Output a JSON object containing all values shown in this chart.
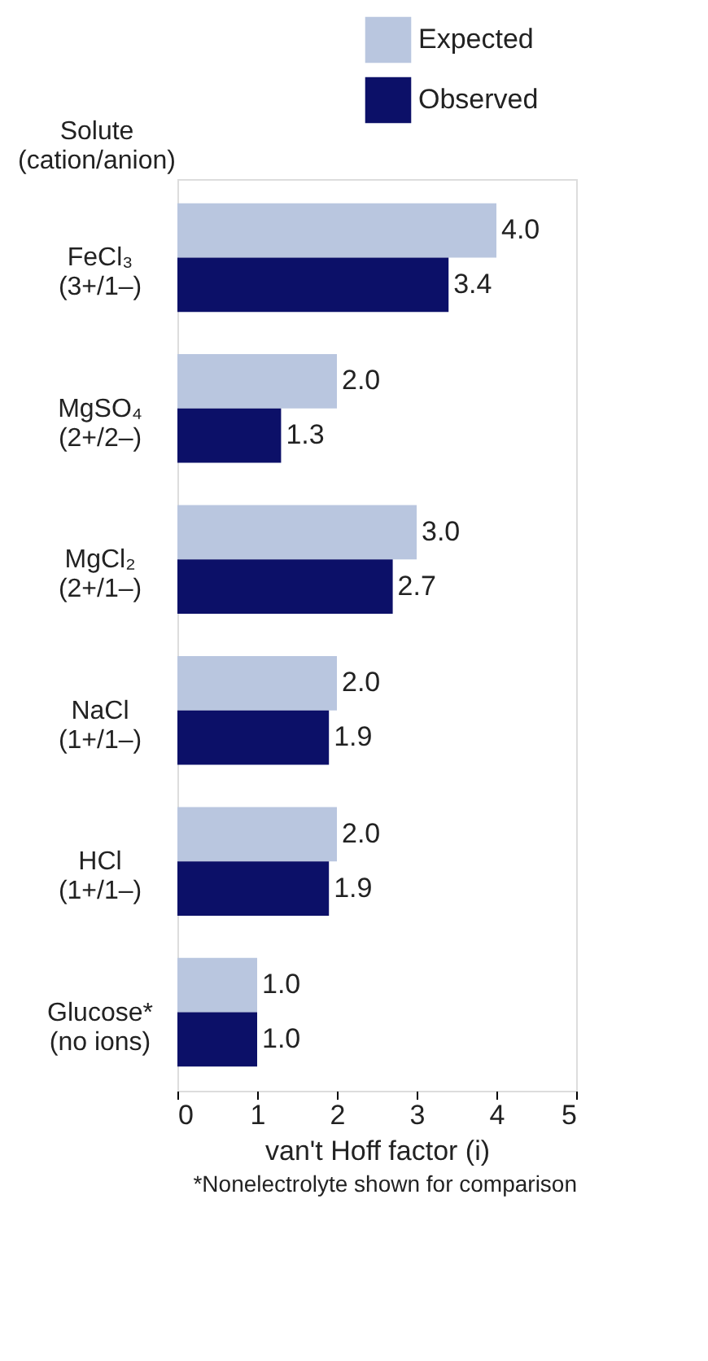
{
  "chart_data": {
    "type": "bar",
    "orientation": "horizontal",
    "ylabel": "Solute (cation/anion)",
    "xlabel": "van't Hoff factor (i)",
    "categories": [
      "FeCl₃ (3+/1–)",
      "MgSO₄ (2+/2–)",
      "MgCl₂ (2+/1–)",
      "NaCl (1+/1–)",
      "HCl (1+/1–)",
      "Glucose* (no ions)"
    ],
    "series": [
      {
        "name": "Expected",
        "color": "#b9c6df",
        "values": [
          4.0,
          2.0,
          3.0,
          2.0,
          2.0,
          1.0
        ],
        "value_labels": [
          "4.0",
          "2.0",
          "3.0",
          "2.0",
          "2.0",
          "1.0"
        ]
      },
      {
        "name": "Observed",
        "color": "#0c1068",
        "values": [
          3.4,
          1.3,
          2.7,
          1.9,
          1.9,
          1.0
        ],
        "value_labels": [
          "3.4",
          "1.3",
          "2.7",
          "1.9",
          "1.9",
          "1.0"
        ]
      }
    ],
    "xlim": [
      0,
      5
    ],
    "xticks": [
      0,
      1,
      2,
      3,
      4,
      5
    ],
    "grid": false,
    "legend": "top right",
    "annotations": [
      "*Nonelectrolyte shown for comparison"
    ]
  }
}
